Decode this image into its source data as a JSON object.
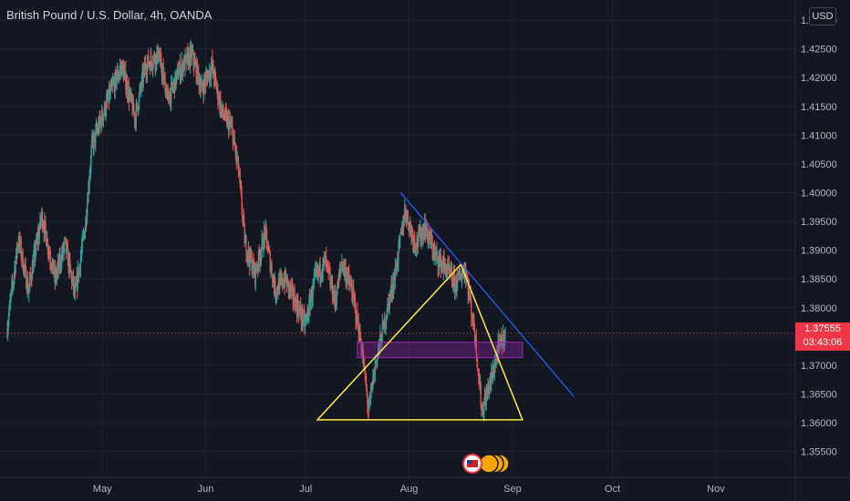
{
  "header": {
    "title": "British Pound / U.S. Dollar, 4h, OANDA",
    "currency_button": "USD"
  },
  "price_tag": {
    "price": "1.37555",
    "countdown": "03:43:06"
  },
  "colors": {
    "background": "#131722",
    "up": "#26a69a",
    "down": "#ef5350",
    "grid": "#1e222d",
    "axis_text": "#b2b5be",
    "current_price": "#f23645",
    "trendline_blue": "#2962ff",
    "triangle_yellow": "#ffeb3b",
    "zone_purple": "#9c27b0"
  },
  "chart_data": {
    "type": "candlestick",
    "title": "British Pound / U.S. Dollar, 4h, OANDA",
    "y_ticks": [
      1.355,
      1.36,
      1.365,
      1.37,
      1.375,
      1.38,
      1.385,
      1.39,
      1.395,
      1.4,
      1.405,
      1.41,
      1.415,
      1.42,
      1.425,
      1.43
    ],
    "y_tick_labels": [
      "1.35500",
      "1.36000",
      "1.36500",
      "1.37000",
      "1.37500",
      "1.38000",
      "1.38500",
      "1.39000",
      "1.39500",
      "1.40000",
      "1.40500",
      "1.41000",
      "1.41500",
      "1.42000",
      "1.42500",
      "1.43000"
    ],
    "ylim": [
      1.3505,
      1.4335
    ],
    "x_labels": [
      "May",
      "Jun",
      "Jul",
      "Aug",
      "Sep",
      "Oct",
      "Nov"
    ],
    "x_label_days": [
      30,
      61,
      91,
      122,
      153,
      183,
      214
    ],
    "xlim": [
      1.5,
      240
    ],
    "current_price": 1.37555,
    "price_path": [
      {
        "day": 1.5,
        "p": 1.376
      },
      {
        "day": 5,
        "p": 1.392
      },
      {
        "day": 8,
        "p": 1.383
      },
      {
        "day": 12,
        "p": 1.396
      },
      {
        "day": 16,
        "p": 1.385
      },
      {
        "day": 19,
        "p": 1.391
      },
      {
        "day": 22,
        "p": 1.382
      },
      {
        "day": 25,
        "p": 1.394
      },
      {
        "day": 27,
        "p": 1.408
      },
      {
        "day": 30,
        "p": 1.413
      },
      {
        "day": 33,
        "p": 1.418
      },
      {
        "day": 36,
        "p": 1.422
      },
      {
        "day": 40,
        "p": 1.413
      },
      {
        "day": 43,
        "p": 1.422
      },
      {
        "day": 47,
        "p": 1.424
      },
      {
        "day": 50,
        "p": 1.416
      },
      {
        "day": 53,
        "p": 1.421
      },
      {
        "day": 57,
        "p": 1.424
      },
      {
        "day": 60,
        "p": 1.418
      },
      {
        "day": 63,
        "p": 1.422
      },
      {
        "day": 66,
        "p": 1.414
      },
      {
        "day": 69,
        "p": 1.411
      },
      {
        "day": 71,
        "p": 1.404
      },
      {
        "day": 73,
        "p": 1.391
      },
      {
        "day": 76,
        "p": 1.386
      },
      {
        "day": 79,
        "p": 1.393
      },
      {
        "day": 82,
        "p": 1.383
      },
      {
        "day": 85,
        "p": 1.385
      },
      {
        "day": 88,
        "p": 1.381
      },
      {
        "day": 91,
        "p": 1.377
      },
      {
        "day": 94,
        "p": 1.385
      },
      {
        "day": 97,
        "p": 1.388
      },
      {
        "day": 100,
        "p": 1.381
      },
      {
        "day": 102,
        "p": 1.388
      },
      {
        "day": 105,
        "p": 1.383
      },
      {
        "day": 108,
        "p": 1.373
      },
      {
        "day": 110,
        "p": 1.362
      },
      {
        "day": 112,
        "p": 1.37
      },
      {
        "day": 115,
        "p": 1.378
      },
      {
        "day": 118,
        "p": 1.386
      },
      {
        "day": 121,
        "p": 1.397
      },
      {
        "day": 124,
        "p": 1.391
      },
      {
        "day": 127,
        "p": 1.394
      },
      {
        "day": 130,
        "p": 1.389
      },
      {
        "day": 133,
        "p": 1.387
      },
      {
        "day": 136,
        "p": 1.384
      },
      {
        "day": 139,
        "p": 1.387
      },
      {
        "day": 142,
        "p": 1.375
      },
      {
        "day": 144,
        "p": 1.362
      },
      {
        "day": 147,
        "p": 1.368
      },
      {
        "day": 149,
        "p": 1.373
      },
      {
        "day": 151,
        "p": 1.3755
      }
    ],
    "annotations": {
      "blue_trendline": {
        "from": {
          "day": 119.5,
          "p": 1.4
        },
        "to": {
          "day": 171.5,
          "p": 1.3645
        }
      },
      "yellow_triangle": [
        {
          "day": 137.5,
          "p": 1.3875
        },
        {
          "day": 156,
          "p": 1.3605
        },
        {
          "day": 94.5,
          "p": 1.3605
        }
      ],
      "purple_zone": {
        "day_from": 106.5,
        "day_to": 156,
        "p_from": 1.3713,
        "p_to": 1.374
      }
    }
  }
}
